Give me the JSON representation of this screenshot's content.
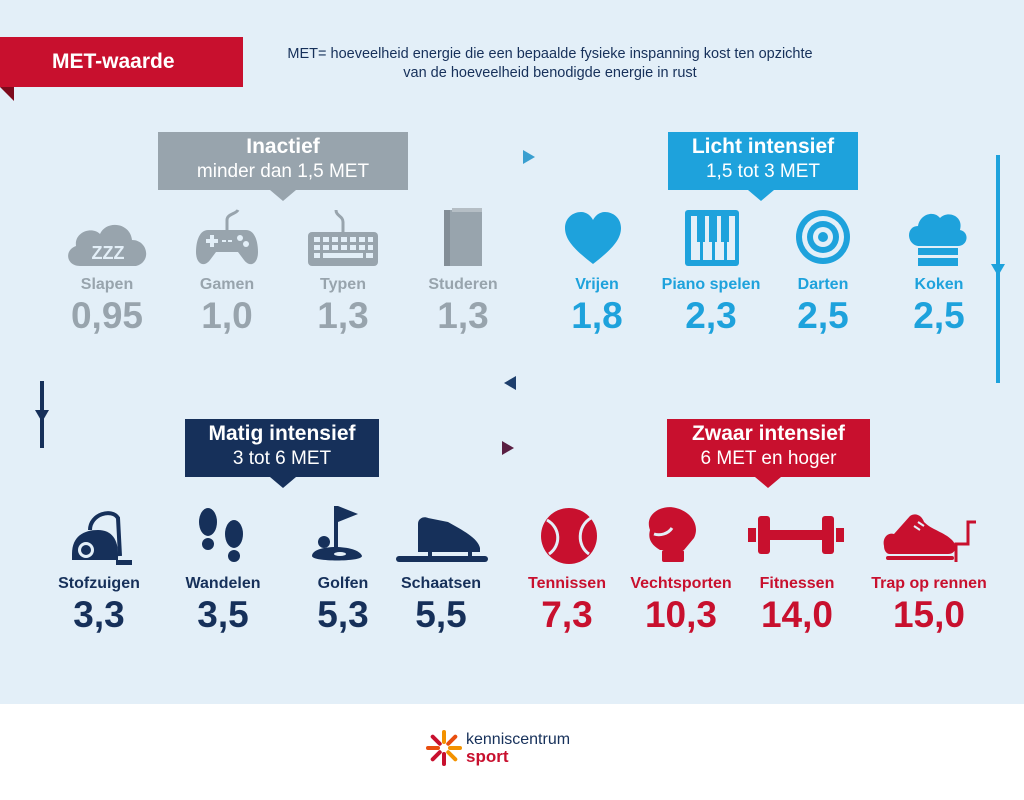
{
  "header": {
    "tag": "MET-waarde",
    "definition_line1": "MET= hoeveelheid energie die een bepaalde fysieke inspanning kost ten opzichte",
    "definition_line2": "van de hoeveelheid benodigde energie in rust"
  },
  "colors": {
    "gray": "#98a4ad",
    "blue": "#1ea2dc",
    "navy": "#16305a",
    "red": "#c8102e",
    "panel": "#e3eff8"
  },
  "categories": [
    {
      "title": "Inactief",
      "subtitle": "minder dan 1,5 MET",
      "activities": [
        {
          "label": "Slapen",
          "value": "0,95",
          "icon": "sleep-cloud-icon",
          "icon_text": "ZZZ"
        },
        {
          "label": "Gamen",
          "value": "1,0",
          "icon": "gamepad-icon"
        },
        {
          "label": "Typen",
          "value": "1,3",
          "icon": "keyboard-icon"
        },
        {
          "label": "Studeren",
          "value": "1,3",
          "icon": "book-icon"
        }
      ]
    },
    {
      "title": "Licht intensief",
      "subtitle": "1,5 tot 3 MET",
      "activities": [
        {
          "label": "Vrijen",
          "value": "1,8",
          "icon": "heart-icon"
        },
        {
          "label": "Piano spelen",
          "value": "2,3",
          "icon": "piano-icon"
        },
        {
          "label": "Darten",
          "value": "2,5",
          "icon": "target-icon"
        },
        {
          "label": "Koken",
          "value": "2,5",
          "icon": "chef-hat-icon"
        }
      ]
    },
    {
      "title": "Matig intensief",
      "subtitle": "3 tot 6 MET",
      "activities": [
        {
          "label": "Stofzuigen",
          "value": "3,3",
          "icon": "vacuum-cleaner-icon"
        },
        {
          "label": "Wandelen",
          "value": "3,5",
          "icon": "footprints-icon"
        },
        {
          "label": "Golfen",
          "value": "5,3",
          "icon": "golf-flag-icon"
        },
        {
          "label": "Schaatsen",
          "value": "5,5",
          "icon": "skate-icon"
        }
      ]
    },
    {
      "title": "Zwaar intensief",
      "subtitle": "6 MET en hoger",
      "activities": [
        {
          "label": "Tennissen",
          "value": "7,3",
          "icon": "tennis-ball-icon"
        },
        {
          "label": "Vechtsporten",
          "value": "10,3",
          "icon": "boxing-glove-icon"
        },
        {
          "label": "Fitnessen",
          "value": "14,0",
          "icon": "dumbbell-icon"
        },
        {
          "label": "Trap op rennen",
          "value": "15,0",
          "icon": "running-shoe-stairs-icon"
        }
      ]
    }
  ],
  "footer": {
    "logo_line1": "kenniscentrum",
    "logo_line2": "sport"
  }
}
